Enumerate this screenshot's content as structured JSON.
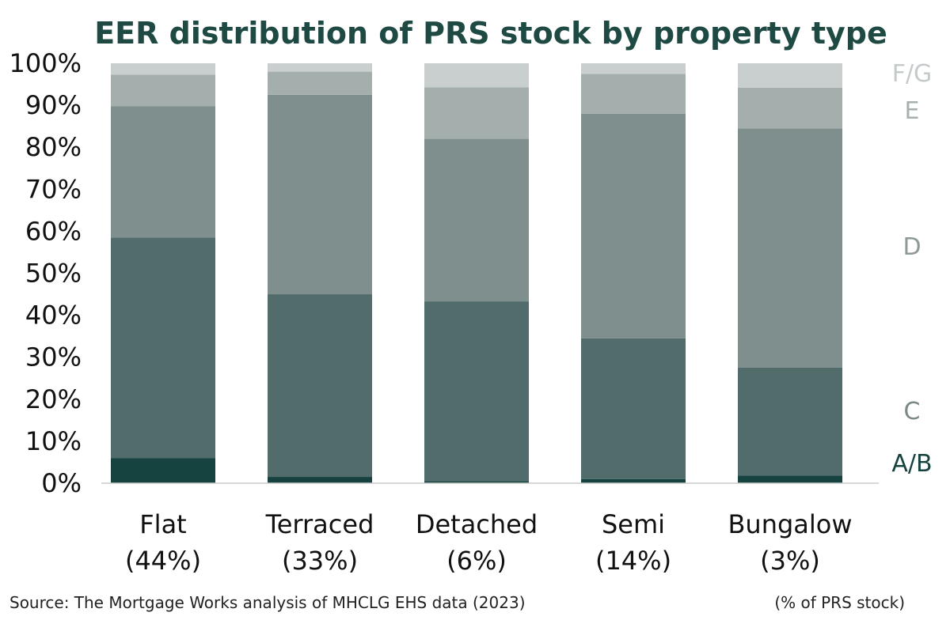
{
  "chart_data": {
    "type": "bar",
    "stacked": true,
    "title": "EER distribution of PRS stock by property type",
    "categories": [
      "Flat",
      "Terraced",
      "Detached",
      "Semi",
      "Bungalow"
    ],
    "category_shares": [
      "(44%)",
      "(33%)",
      "(6%)",
      "(14%)",
      "(3%)"
    ],
    "ylim": [
      0,
      100
    ],
    "yticks": [
      "0%",
      "10%",
      "20%",
      "30%",
      "40%",
      "50%",
      "60%",
      "70%",
      "80%",
      "90%",
      "100%"
    ],
    "series": [
      {
        "name": "A/B",
        "color": "#16423f",
        "values": [
          6,
          1.5,
          0.5,
          1,
          1.8
        ]
      },
      {
        "name": "C",
        "color": "#526b6b",
        "values": [
          52.5,
          43.5,
          42.8,
          33.5,
          25.7
        ]
      },
      {
        "name": "D",
        "color": "#7f8f8d",
        "values": [
          31.3,
          47.5,
          38.7,
          53.5,
          57
        ]
      },
      {
        "name": "E",
        "color": "#a4afad",
        "values": [
          7.5,
          5.5,
          12.3,
          9.5,
          9.7
        ]
      },
      {
        "name": "F/G",
        "color": "#c8cfce",
        "values": [
          2.7,
          2,
          5.7,
          2.5,
          5.8
        ]
      }
    ],
    "legend_position": "right",
    "grid": false
  },
  "footer": {
    "source": "Source: The Mortgage Works analysis of MHCLG EHS data (2023)",
    "note": "(% of PRS stock)"
  }
}
